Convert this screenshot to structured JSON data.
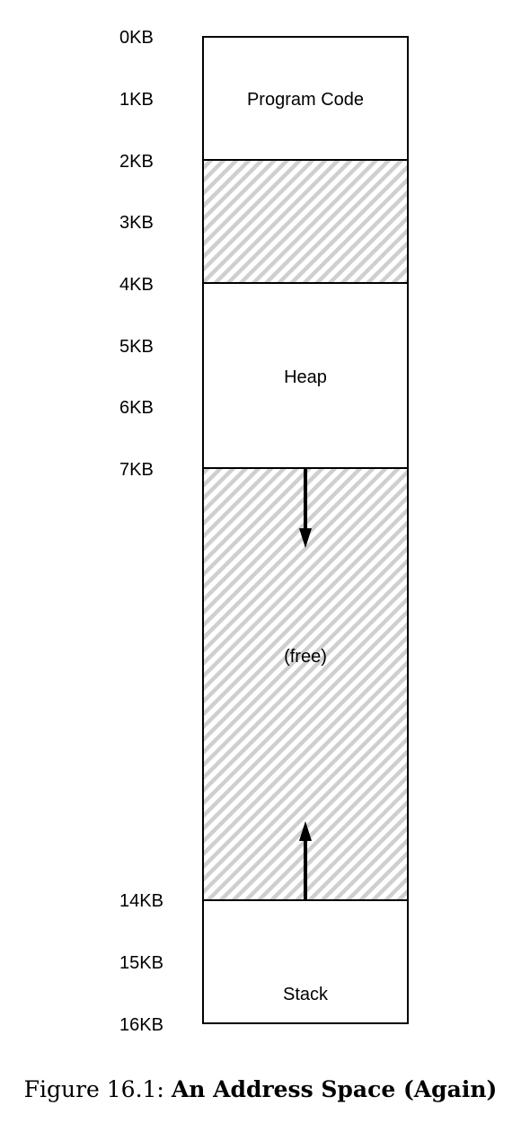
{
  "diagram": {
    "ticks": [
      "0KB",
      "1KB",
      "2KB",
      "3KB",
      "4KB",
      "5KB",
      "6KB",
      "7KB",
      "14KB",
      "15KB",
      "16KB"
    ],
    "segments": [
      {
        "id": "code",
        "label": "Program Code",
        "start_kb": 0,
        "end_kb": 2,
        "fill": "white"
      },
      {
        "id": "gap",
        "label": "",
        "start_kb": 2,
        "end_kb": 4,
        "fill": "hatched"
      },
      {
        "id": "heap",
        "label": "Heap",
        "start_kb": 4,
        "end_kb": 7,
        "fill": "white"
      },
      {
        "id": "free",
        "label": "(free)",
        "start_kb": 7,
        "end_kb": 14,
        "fill": "hatched"
      },
      {
        "id": "stack",
        "label": "Stack",
        "start_kb": 14,
        "end_kb": 16,
        "fill": "white"
      }
    ],
    "arrows": [
      {
        "id": "heap-growth",
        "direction": "down"
      },
      {
        "id": "stack-growth",
        "direction": "up"
      }
    ]
  },
  "caption": {
    "prefix": "Figure 16.1: ",
    "title": "An Address Space (Again)"
  }
}
